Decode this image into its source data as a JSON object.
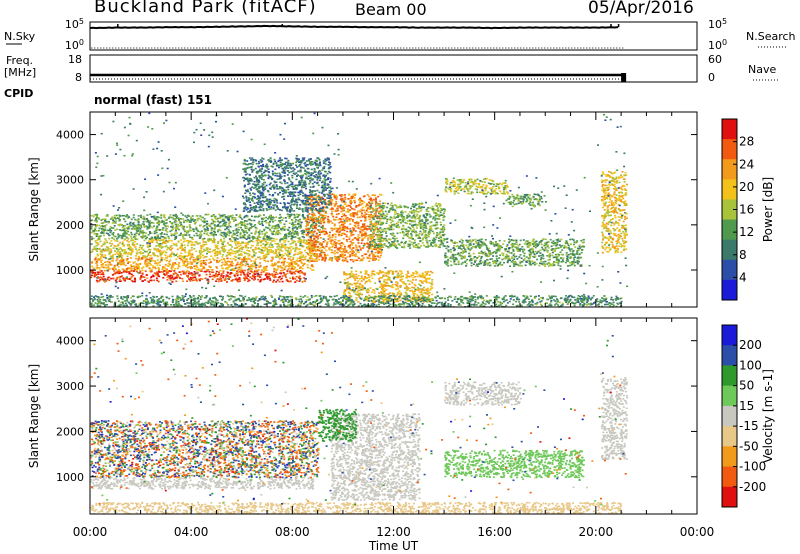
{
  "header": {
    "station": "Buckland Park (fitACF)",
    "beam": "Beam 00",
    "date": "05/Apr/2016"
  },
  "left_labels": {
    "nsky": "N.Sky",
    "freq": "Freq.",
    "mhz": "[MHz]",
    "cpid": "CPID"
  },
  "right_labels": {
    "nsearch": "N.Search",
    "nave": "Nave"
  },
  "program": "normal (fast) 151",
  "colors": {
    "power": [
      "#1a1ad9",
      "#2b4fa8",
      "#3b7a6a",
      "#4f9a4f",
      "#a8c23a",
      "#f2c21a",
      "#f29a1a",
      "#f25a0f",
      "#e01010"
    ],
    "velocity": [
      "#e01010",
      "#f25a0f",
      "#f29a1a",
      "#e8c888",
      "#c8c8c0",
      "#6ec85a",
      "#2e9a2e",
      "#2b4fa8",
      "#1a1ad9"
    ]
  },
  "chart_data": [
    {
      "type": "line",
      "name": "noise-panel",
      "y_left_ticks": [
        "10^5",
        "10^0"
      ],
      "y_right_ticks": [
        "10^5",
        "10^0"
      ],
      "x": [
        0,
        1,
        2,
        3,
        4,
        5,
        6,
        7,
        8,
        9,
        10,
        11,
        12,
        13,
        14,
        15,
        16,
        17,
        18,
        19,
        20,
        21
      ],
      "series": [
        {
          "values": [
            4.5,
            4.6,
            4.6,
            4.7,
            4.7,
            4.8,
            4.9,
            5.0,
            4.9,
            4.8,
            4.8,
            4.7,
            4.7,
            4.6,
            4.6,
            4.6,
            4.5,
            4.6,
            4.6,
            4.6,
            4.6,
            4.7
          ]
        }
      ]
    },
    {
      "type": "line",
      "name": "frequency-panel",
      "y_left_ticks": [
        "18",
        "8"
      ],
      "y_right_ticks": [
        "60",
        "0"
      ],
      "x": [
        0,
        21.1
      ],
      "series": [
        {
          "values": [
            8.6,
            8.6
          ]
        }
      ]
    },
    {
      "type": "heatmap",
      "name": "power",
      "xlabel": "",
      "ylabel": "Slant Range [km]",
      "colorbar_label": "Power [dB]",
      "colorbar_ticks": [
        "28",
        "24",
        "20",
        "16",
        "12",
        "8",
        "4"
      ],
      "y_ticks": [
        "4000",
        "3000",
        "2000",
        "1000"
      ],
      "ylim": [
        180,
        4500
      ],
      "xlim": [
        0,
        24
      ],
      "bands": [
        {
          "x0": 0.0,
          "x1": 8.5,
          "y0": 750,
          "y1": 1000,
          "power": 28
        },
        {
          "x0": 0.0,
          "x1": 8.8,
          "y0": 1000,
          "y1": 1300,
          "power": 22
        },
        {
          "x0": 0.0,
          "x1": 9.0,
          "y0": 1300,
          "y1": 1700,
          "power": 18
        },
        {
          "x0": 0.0,
          "x1": 9.2,
          "y0": 1700,
          "y1": 2250,
          "power": 13
        },
        {
          "x0": 8.5,
          "x1": 11.5,
          "y0": 1200,
          "y1": 2700,
          "power": 24
        },
        {
          "x0": 10.0,
          "x1": 13.5,
          "y0": 300,
          "y1": 1000,
          "power": 20
        },
        {
          "x0": 11.0,
          "x1": 14.0,
          "y0": 1500,
          "y1": 2500,
          "power": 14
        },
        {
          "x0": 14.0,
          "x1": 19.5,
          "y0": 1100,
          "y1": 1700,
          "power": 13
        },
        {
          "x0": 14.0,
          "x1": 16.5,
          "y0": 2700,
          "y1": 3050,
          "power": 17
        },
        {
          "x0": 16.5,
          "x1": 18.0,
          "y0": 2400,
          "y1": 2700,
          "power": 12
        },
        {
          "x0": 0.0,
          "x1": 21.0,
          "y0": 200,
          "y1": 450,
          "power": 11
        },
        {
          "x0": 6.0,
          "x1": 9.5,
          "y0": 2300,
          "y1": 3500,
          "power": 9
        },
        {
          "x0": 20.2,
          "x1": 21.2,
          "y0": 1400,
          "y1": 3200,
          "power": 20
        }
      ]
    },
    {
      "type": "heatmap",
      "name": "velocity",
      "xlabel": "Time UT",
      "ylabel": "Slant Range [km]",
      "colorbar_label": "Velocity [m s-1]",
      "colorbar_ticks": [
        "200",
        "100",
        "50",
        "15",
        "-15",
        "-50",
        "-100",
        "-200"
      ],
      "x_ticks": [
        "00:00",
        "04:00",
        "08:00",
        "12:00",
        "16:00",
        "20:00",
        "00:00"
      ],
      "y_ticks": [
        "4000",
        "3000",
        "2000",
        "1000"
      ],
      "ylim": [
        180,
        4500
      ],
      "xlim": [
        0,
        24
      ],
      "bands": [
        {
          "x0": 0.0,
          "x1": 8.8,
          "y0": 750,
          "y1": 1000,
          "velocity": 0
        },
        {
          "x0": 0.0,
          "x1": 9.0,
          "y0": 1000,
          "y1": 2250,
          "velocity": 0,
          "mixed": true
        },
        {
          "x0": 9.5,
          "x1": 13.0,
          "y0": 500,
          "y1": 2400,
          "velocity": 0
        },
        {
          "x0": 9.0,
          "x1": 10.5,
          "y0": 1800,
          "y1": 2500,
          "velocity": 60
        },
        {
          "x0": 14.0,
          "x1": 19.5,
          "y0": 1000,
          "y1": 1600,
          "velocity": 40
        },
        {
          "x0": 14.0,
          "x1": 17.0,
          "y0": 2600,
          "y1": 3100,
          "velocity": 5
        },
        {
          "x0": 0.0,
          "x1": 21.0,
          "y0": 200,
          "y1": 450,
          "velocity": -40
        },
        {
          "x0": 20.2,
          "x1": 21.2,
          "y0": 1400,
          "y1": 3200,
          "velocity": 0
        }
      ]
    }
  ]
}
